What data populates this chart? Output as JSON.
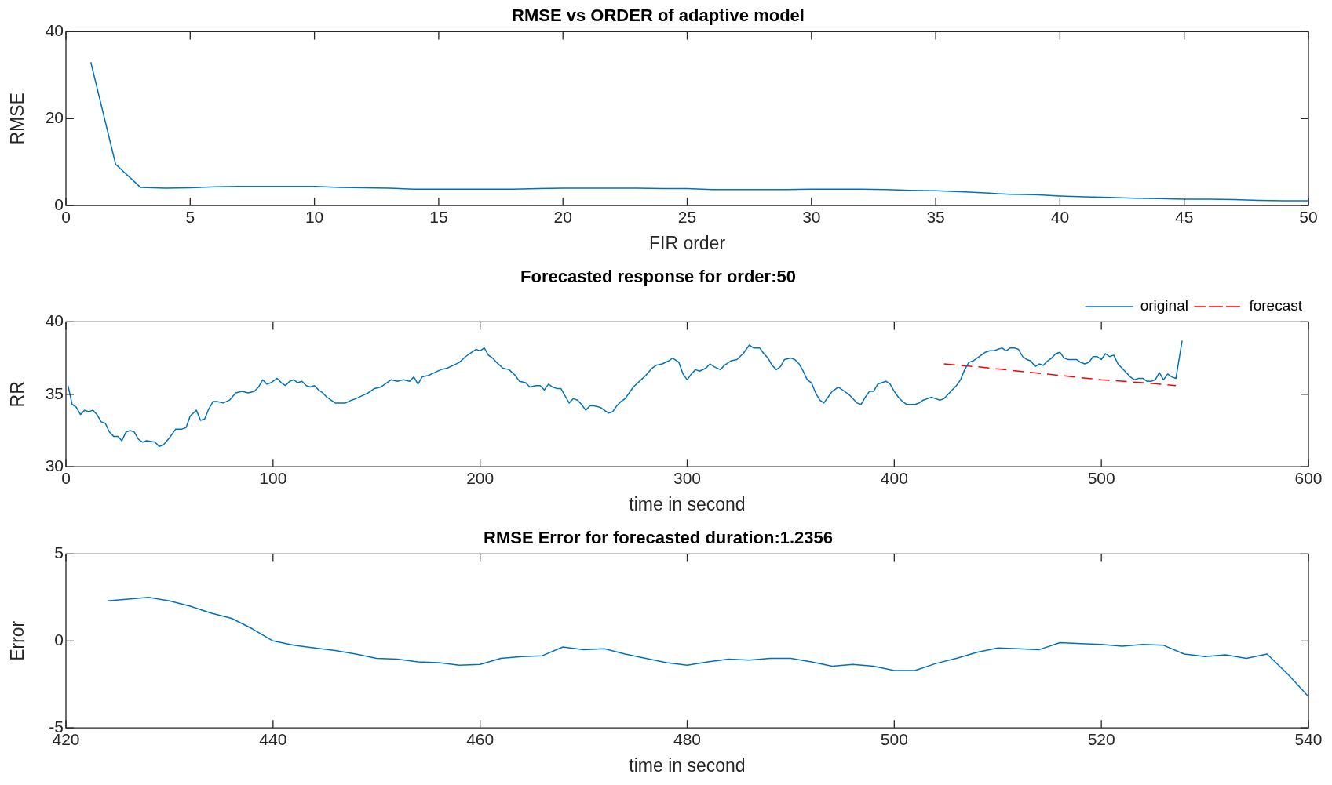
{
  "chart_data": [
    {
      "type": "line",
      "title": "RMSE vs ORDER of adaptive model",
      "xlabel": "FIR order",
      "ylabel": "RMSE",
      "xlim": [
        0,
        50
      ],
      "xticks": [
        0,
        5,
        10,
        15,
        20,
        25,
        30,
        35,
        40,
        45,
        50
      ],
      "ylim": [
        0,
        40
      ],
      "yticks": [
        0,
        20,
        40
      ],
      "grid": false,
      "legend": false,
      "series": [
        {
          "color": "#0072bd",
          "x": [
            1,
            2,
            3,
            4,
            5,
            6,
            7,
            8,
            9,
            10,
            11,
            12,
            13,
            14,
            15,
            16,
            17,
            18,
            19,
            20,
            21,
            22,
            23,
            24,
            25,
            26,
            27,
            28,
            29,
            30,
            31,
            32,
            33,
            34,
            35,
            36,
            37,
            38,
            39,
            40,
            41,
            42,
            43,
            44,
            45,
            46,
            47,
            48,
            49,
            50
          ],
          "values": [
            33,
            9.5,
            4.2,
            4.0,
            4.1,
            4.3,
            4.4,
            4.4,
            4.4,
            4.4,
            4.2,
            4.1,
            4.0,
            3.8,
            3.8,
            3.8,
            3.8,
            3.8,
            3.9,
            4.0,
            4.0,
            4.0,
            4.0,
            3.9,
            3.9,
            3.7,
            3.7,
            3.7,
            3.7,
            3.8,
            3.8,
            3.8,
            3.7,
            3.5,
            3.4,
            3.2,
            2.9,
            2.6,
            2.5,
            2.2,
            2.0,
            1.9,
            1.7,
            1.6,
            1.5,
            1.5,
            1.4,
            1.2,
            1.1,
            1.1
          ]
        }
      ]
    },
    {
      "type": "line",
      "title": "Forecasted response for order:50",
      "xlabel": "time in second",
      "ylabel": "RR",
      "xlim": [
        0,
        600
      ],
      "xticks": [
        0,
        100,
        200,
        300,
        400,
        500,
        600
      ],
      "ylim": [
        30,
        40
      ],
      "yticks": [
        30,
        35,
        40
      ],
      "grid": false,
      "legend": "top right",
      "series": [
        {
          "name": "original",
          "color": "#0072bd",
          "line_style": "solid",
          "x": [
            1,
            3,
            5,
            7,
            9,
            11,
            13,
            15,
            17,
            19,
            21,
            23,
            25,
            27,
            29,
            31,
            33,
            35,
            37,
            39,
            43,
            45,
            47,
            50,
            53,
            56,
            58,
            60,
            63,
            65,
            67,
            69,
            71,
            73,
            76,
            79,
            82,
            85,
            88,
            91,
            93,
            95,
            97,
            99,
            102,
            104,
            106,
            108,
            110,
            112,
            114,
            116,
            118,
            120,
            122,
            124,
            126,
            128,
            130,
            133,
            135,
            138,
            140,
            143,
            146,
            149,
            152,
            155,
            157,
            160,
            163,
            166,
            168,
            170,
            172,
            175,
            178,
            181,
            184,
            187,
            190,
            193,
            196,
            198,
            200,
            202,
            204,
            206,
            208,
            211,
            214,
            217,
            219,
            222,
            224,
            227,
            229,
            231,
            233,
            235,
            237,
            239,
            241,
            243,
            245,
            247,
            249,
            251,
            253,
            255,
            258,
            260,
            262,
            264,
            266,
            268,
            270,
            272,
            274,
            277,
            280,
            283,
            285,
            288,
            291,
            293,
            296,
            298,
            300,
            302,
            304,
            306,
            309,
            311,
            313,
            316,
            318,
            321,
            324,
            327,
            330,
            332,
            335,
            337,
            339,
            341,
            343,
            345,
            347,
            350,
            352,
            354,
            356,
            358,
            360,
            362,
            364,
            366,
            368,
            370,
            373,
            375,
            378,
            380,
            382,
            384,
            386,
            388,
            390,
            392,
            394,
            396,
            398,
            400,
            402,
            404,
            406,
            408,
            410,
            412,
            414,
            416,
            418,
            420,
            422,
            424,
            426,
            428,
            430,
            432,
            434,
            436,
            438,
            440,
            442,
            444,
            446,
            448,
            450,
            452,
            454,
            456,
            458,
            460,
            462,
            464,
            466,
            468,
            470,
            472,
            474,
            476,
            478,
            480,
            482,
            484,
            486,
            488,
            490,
            492,
            494,
            496,
            498,
            500,
            502,
            504,
            506,
            508,
            510,
            512,
            514,
            516,
            518,
            520,
            522,
            524,
            526,
            528,
            530,
            532,
            534,
            536,
            539
          ],
          "values": [
            35.6,
            34.3,
            34.1,
            33.6,
            33.9,
            33.8,
            33.9,
            33.6,
            33.1,
            33.0,
            32.4,
            32.1,
            32.1,
            31.8,
            32.4,
            32.5,
            32.4,
            31.9,
            31.7,
            31.8,
            31.7,
            31.4,
            31.5,
            32.0,
            32.6,
            32.6,
            32.7,
            33.5,
            33.9,
            33.2,
            33.3,
            34.0,
            34.5,
            34.5,
            34.4,
            34.6,
            35.1,
            35.2,
            35.1,
            35.2,
            35.5,
            36.0,
            35.7,
            35.8,
            36.1,
            35.8,
            35.6,
            35.9,
            36.0,
            35.8,
            35.9,
            35.6,
            35.5,
            35.6,
            35.3,
            35.1,
            34.8,
            34.6,
            34.4,
            34.4,
            34.4,
            34.6,
            34.7,
            34.9,
            35.1,
            35.4,
            35.5,
            35.8,
            36.0,
            35.9,
            36.0,
            35.9,
            36.2,
            35.7,
            36.2,
            36.3,
            36.5,
            36.7,
            36.8,
            37.0,
            37.2,
            37.6,
            37.9,
            38.1,
            38.0,
            38.2,
            37.7,
            37.5,
            37.2,
            36.8,
            36.7,
            36.3,
            35.9,
            35.8,
            35.5,
            35.6,
            35.6,
            35.3,
            35.7,
            35.5,
            35.4,
            35.4,
            34.9,
            34.4,
            34.7,
            34.6,
            34.3,
            33.9,
            34.2,
            34.2,
            34.1,
            33.9,
            33.7,
            33.8,
            34.2,
            34.5,
            34.7,
            35.1,
            35.5,
            35.9,
            36.3,
            36.8,
            37.0,
            37.1,
            37.3,
            37.5,
            37.2,
            36.4,
            36.0,
            36.4,
            36.7,
            36.6,
            36.8,
            37.1,
            36.9,
            36.7,
            37.0,
            37.3,
            37.4,
            37.8,
            38.4,
            38.2,
            38.2,
            37.8,
            37.5,
            37.0,
            36.7,
            36.9,
            37.4,
            37.5,
            37.4,
            37.1,
            36.6,
            36.0,
            35.8,
            35.1,
            34.6,
            34.4,
            34.8,
            35.2,
            35.5,
            35.3,
            35.0,
            34.7,
            34.4,
            34.3,
            34.8,
            35.2,
            35.2,
            35.7,
            35.8,
            35.9,
            35.7,
            35.2,
            34.8,
            34.5,
            34.3,
            34.3,
            34.3,
            34.4,
            34.6,
            34.7,
            34.8,
            34.7,
            34.6,
            34.7,
            35.0,
            35.3,
            35.6,
            36.0,
            36.7,
            37.2,
            37.3,
            37.5,
            37.7,
            37.9,
            38.0,
            38.0,
            38.1,
            38.2,
            38.0,
            38.2,
            38.2,
            38.1,
            37.6,
            37.4,
            37.3,
            36.9,
            37.1,
            37.0,
            37.3,
            37.5,
            37.8,
            37.9,
            37.5,
            37.4,
            37.4,
            37.4,
            37.2,
            37.1,
            37.2,
            37.6,
            37.6,
            37.4,
            37.8,
            37.6,
            37.7,
            37.1,
            36.8,
            36.5,
            36.2,
            36.0,
            36.1,
            36.1,
            35.9,
            35.9,
            36.0,
            36.5,
            36.0,
            36.4,
            36.2,
            36.1,
            38.7
          ]
        },
        {
          "name": "forecast",
          "color": "#ff0000",
          "line_style": "dashed",
          "x": [
            424,
            440,
            460,
            480,
            500,
            520,
            536
          ],
          "values": [
            37.1,
            36.9,
            36.6,
            36.3,
            36.0,
            35.8,
            35.6
          ]
        }
      ]
    },
    {
      "type": "line",
      "title": "RMSE Error for forecasted duration:1.2356",
      "xlabel": "time in second",
      "ylabel": "Error",
      "xlim": [
        420,
        540
      ],
      "xticks": [
        420,
        440,
        460,
        480,
        500,
        520,
        540
      ],
      "ylim": [
        -5,
        5
      ],
      "yticks": [
        -5,
        0,
        5
      ],
      "grid": false,
      "legend": false,
      "series": [
        {
          "color": "#0072bd",
          "x": [
            424,
            426,
            428,
            430,
            432,
            434,
            436,
            438,
            440,
            442,
            444,
            446,
            448,
            450,
            452,
            454,
            456,
            458,
            460,
            462,
            464,
            466,
            468,
            470,
            472,
            474,
            476,
            478,
            480,
            482,
            484,
            486,
            488,
            490,
            492,
            494,
            496,
            498,
            500,
            502,
            504,
            506,
            508,
            510,
            512,
            514,
            516,
            518,
            520,
            522,
            524,
            526,
            528,
            530,
            532,
            534,
            536,
            538,
            540
          ],
          "values": [
            2.3,
            2.4,
            2.5,
            2.3,
            2.0,
            1.6,
            1.3,
            0.7,
            0.0,
            -0.25,
            -0.4,
            -0.55,
            -0.75,
            -1.0,
            -1.05,
            -1.2,
            -1.25,
            -1.4,
            -1.35,
            -1.0,
            -0.9,
            -0.85,
            -0.35,
            -0.5,
            -0.45,
            -0.75,
            -1.0,
            -1.25,
            -1.4,
            -1.2,
            -1.05,
            -1.1,
            -1.0,
            -1.0,
            -1.2,
            -1.45,
            -1.35,
            -1.45,
            -1.7,
            -1.7,
            -1.3,
            -1.0,
            -0.65,
            -0.4,
            -0.45,
            -0.5,
            -0.1,
            -0.15,
            -0.2,
            -0.3,
            -0.2,
            -0.25,
            -0.75,
            -0.9,
            -0.8,
            -1.0,
            -0.75,
            -1.9,
            -3.2
          ]
        }
      ]
    }
  ]
}
